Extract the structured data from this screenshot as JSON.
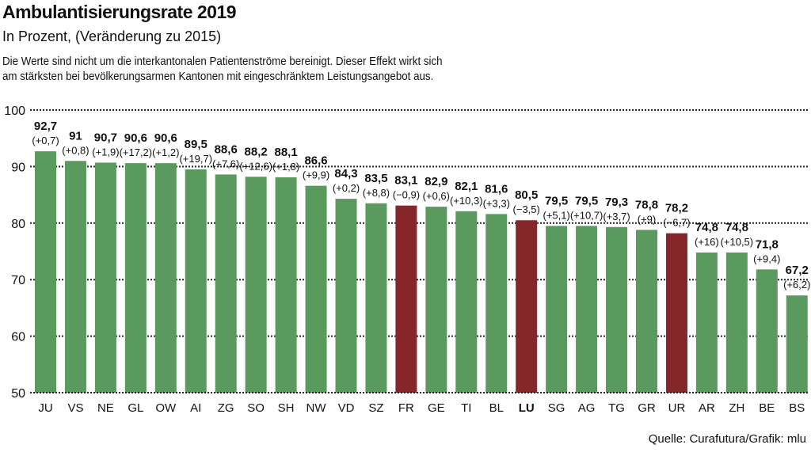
{
  "chart_data": {
    "type": "bar",
    "title": "Ambulantisierungsrate 2019",
    "subtitle": "In Prozent, (Veränderung zu 2015)",
    "note_lines": [
      "Die Werte sind nicht um die interkantonalen Patientenströme bereinigt. Dieser Effekt wirkt sich",
      "am stärksten bei bevölkerungsarmen Kantonen mit eingeschränktem Leistungsangebot aus."
    ],
    "source": "Quelle: Curafutura/Grafik: mlu",
    "xlabel": "",
    "ylabel": "",
    "ylim": [
      50,
      100
    ],
    "yticks": [
      50,
      60,
      70,
      80,
      90,
      100
    ],
    "grid": true,
    "categories": [
      "JU",
      "VS",
      "NE",
      "GL",
      "OW",
      "AI",
      "ZG",
      "SO",
      "SH",
      "NW",
      "VD",
      "SZ",
      "FR",
      "GE",
      "TI",
      "BL",
      "LU",
      "SG",
      "AG",
      "TG",
      "GR",
      "UR",
      "AR",
      "ZH",
      "BE",
      "BS"
    ],
    "values": [
      92.7,
      91,
      90.7,
      90.6,
      90.6,
      89.5,
      88.6,
      88.2,
      88.1,
      86.6,
      84.3,
      83.5,
      83.1,
      82.9,
      82.1,
      81.6,
      80.5,
      79.5,
      79.5,
      79.3,
      78.8,
      78.2,
      74.8,
      74.8,
      71.8,
      67.2
    ],
    "value_labels": [
      "92,7",
      "91",
      "90,7",
      "90,6",
      "90,6",
      "89,5",
      "88,6",
      "88,2",
      "88,1",
      "86,6",
      "84,3",
      "83,5",
      "83,1",
      "82,9",
      "82,1",
      "81,6",
      "80,5",
      "79,5",
      "79,5",
      "79,3",
      "78,8",
      "78,2",
      "74,8",
      "74,8",
      "71,8",
      "67,2"
    ],
    "change_labels": [
      "(+0,7)",
      "(+0,8)",
      "(+1,9)",
      "(+17,2)",
      "(+1,2)",
      "(+19,7)",
      "(+7,6)",
      "(+12,6)",
      "(+1,8)",
      "(+9,9)",
      "(+0,2)",
      "(+8,8)",
      "(−0,9)",
      "(+0,6)",
      "(+10,3)",
      "(+3,3)",
      "(−3,5)",
      "(+5,1)",
      "(+10,7)",
      "(+3,7)",
      "(+9)",
      "(−6,7)",
      "(+16)",
      "(+10,5)",
      "(+9,4)",
      "(+6,2)"
    ],
    "changes": [
      0.7,
      0.8,
      1.9,
      17.2,
      1.2,
      19.7,
      7.6,
      12.6,
      1.8,
      9.9,
      0.2,
      8.8,
      -0.9,
      0.6,
      10.3,
      3.3,
      -3.5,
      5.1,
      10.7,
      3.7,
      9,
      -6.7,
      16,
      10.5,
      9.4,
      6.2
    ],
    "highlight_category": "LU",
    "colors": {
      "increase": "#5b9a5e",
      "decrease": "#85272a",
      "grid": "#222222"
    }
  }
}
